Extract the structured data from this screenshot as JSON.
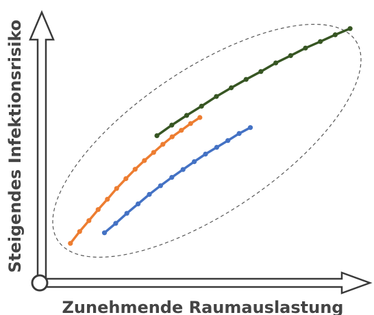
{
  "axes": {
    "x_label": "Zunehmende Raumauslastung",
    "y_label": "Steigendes Infektionsrisiko"
  },
  "colors": {
    "axis_stroke": "#3a3a3a",
    "axis_fill": "#ffffff",
    "ellipse": "#555555",
    "orange": "#ED7D31",
    "blue": "#4472C4",
    "green": "#375623"
  },
  "chart_data": {
    "type": "line",
    "xlabel": "Zunehmende Raumauslastung",
    "ylabel": "Steigendes Infektionsrisiko",
    "xlim": [
      0,
      100
    ],
    "ylim": [
      0,
      100
    ],
    "grid": false,
    "series": [
      {
        "color": "#ED7D31",
        "x": [
          9.3,
          12.1,
          14.9,
          17.7,
          20.5,
          23.3,
          26.1,
          28.9,
          31.7,
          34.5,
          37.3,
          40.1,
          42.9,
          45.7,
          48.5
        ],
        "y": [
          14.6,
          19.0,
          23.0,
          27.1,
          30.9,
          34.9,
          38.5,
          42.0,
          45.2,
          48.2,
          51.2,
          54.0,
          56.4,
          58.9,
          61.1
        ]
      },
      {
        "color": "#4472C4",
        "x": [
          19.6,
          23.0,
          26.4,
          29.8,
          33.2,
          36.6,
          40.0,
          43.4,
          46.8,
          50.2,
          53.6,
          57.0,
          60.4,
          63.8
        ],
        "y": [
          18.5,
          22.0,
          25.7,
          29.2,
          32.7,
          35.9,
          39.0,
          41.9,
          44.8,
          47.6,
          50.1,
          52.6,
          55.2,
          57.4
        ]
      },
      {
        "color": "#375623",
        "x": [
          35.5,
          40.0,
          44.5,
          49.0,
          53.5,
          58.0,
          62.5,
          67.0,
          71.5,
          76.0,
          80.5,
          85.0,
          89.5,
          94.0
        ],
        "y": [
          54.4,
          58.3,
          61.9,
          65.3,
          68.9,
          72.1,
          75.2,
          78.1,
          81.3,
          84.0,
          86.8,
          89.2,
          91.7,
          94.0
        ]
      }
    ]
  }
}
